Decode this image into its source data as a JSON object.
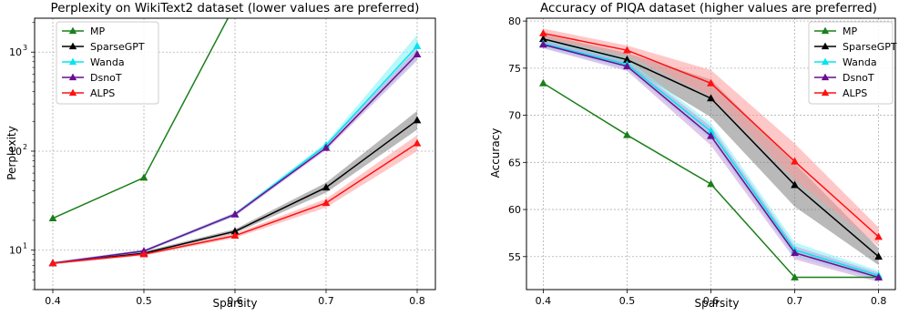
{
  "chart_data": [
    {
      "type": "line",
      "title": "Perplexity on WikiText2 dataset (lower values are preferred)",
      "xlabel": "Sparsity",
      "ylabel": "Perplexity",
      "yscale": "log",
      "grid": true,
      "legend_position": "top-left",
      "xlim": [
        0.38,
        0.82
      ],
      "ylim": [
        4,
        2200
      ],
      "x": [
        0.4,
        0.5,
        0.6,
        0.7,
        0.8
      ],
      "xticks": [
        "0.4",
        "0.5",
        "0.6",
        "0.7",
        "0.8"
      ],
      "yticks": [
        {
          "value": 10,
          "label": "10"
        },
        {
          "value": 100,
          "label": "10"
        },
        {
          "value": 1000,
          "label": "10"
        }
      ],
      "ytick_exponents": [
        "1",
        "2",
        "3"
      ],
      "series": [
        {
          "name": "MP",
          "color": "#1a7f1a",
          "values": [
            21,
            54,
            3000,
            null,
            null
          ],
          "band": null
        },
        {
          "name": "SparseGPT",
          "color": "#000000",
          "values": [
            7.4,
            9.3,
            15.5,
            43,
            205
          ],
          "band": {
            "color": "#808080",
            "low": [
              7.2,
              9.0,
              14.8,
              38,
              165
            ],
            "high": [
              7.6,
              9.7,
              16.3,
              48,
              255
            ]
          }
        },
        {
          "name": "Wanda",
          "color": "#00e5ee",
          "values": [
            7.4,
            9.8,
            23,
            115,
            1150
          ],
          "band": {
            "color": "#7ff3f6",
            "low": [
              7.2,
              9.5,
              22,
              108,
              850
            ],
            "high": [
              7.6,
              10.1,
              24,
              122,
              1500
            ]
          }
        },
        {
          "name": "DsnoT",
          "color": "#6a0d91",
          "values": [
            7.4,
            9.8,
            23,
            108,
            950
          ],
          "band": {
            "color": "#c89bd8",
            "low": [
              7.2,
              9.5,
              22,
              102,
              820
            ],
            "high": [
              7.6,
              10.1,
              24,
              114,
              1100
            ]
          }
        },
        {
          "name": "ALPS",
          "color": "#ff1111",
          "values": [
            7.4,
            9.1,
            14.0,
            30,
            120
          ],
          "band": {
            "color": "#ff9a9a",
            "low": [
              7.2,
              8.8,
              13.3,
              27,
              100
            ],
            "high": [
              7.6,
              9.4,
              14.7,
              33,
              145
            ]
          }
        }
      ]
    },
    {
      "type": "line",
      "title": "Accuracy of PIQA dataset (higher values are preferred)",
      "xlabel": "Sparsity",
      "ylabel": "Accuracy",
      "yscale": "linear",
      "grid": true,
      "legend_position": "top-right",
      "xlim": [
        0.38,
        0.82
      ],
      "ylim": [
        51.5,
        80.3
      ],
      "x": [
        0.4,
        0.5,
        0.6,
        0.7,
        0.8
      ],
      "xticks": [
        "0.4",
        "0.5",
        "0.6",
        "0.7",
        "0.8"
      ],
      "yticks": [
        {
          "value": 55,
          "label": "55"
        },
        {
          "value": 60,
          "label": "60"
        },
        {
          "value": 65,
          "label": "65"
        },
        {
          "value": 70,
          "label": "70"
        },
        {
          "value": 75,
          "label": "75"
        },
        {
          "value": 80,
          "label": "80"
        }
      ],
      "series": [
        {
          "name": "MP",
          "color": "#1a7f1a",
          "values": [
            73.4,
            67.9,
            62.7,
            52.8,
            52.8
          ],
          "band": null
        },
        {
          "name": "SparseGPT",
          "color": "#000000",
          "values": [
            78.1,
            75.9,
            71.8,
            62.6,
            55.0
          ],
          "band": {
            "color": "#808080",
            "low": [
              77.6,
              75.2,
              69.8,
              60.3,
              54.1
            ],
            "high": [
              78.6,
              76.6,
              73.8,
              64.9,
              55.9
            ]
          }
        },
        {
          "name": "Wanda",
          "color": "#00e5ee",
          "values": [
            77.6,
            75.4,
            68.3,
            55.7,
            53.0
          ],
          "band": {
            "color": "#7ff3f6",
            "low": [
              77.2,
              74.9,
              67.4,
              55.0,
              52.5
            ],
            "high": [
              78.0,
              75.9,
              69.2,
              56.5,
              53.5
            ]
          }
        },
        {
          "name": "DsnoT",
          "color": "#6a0d91",
          "values": [
            77.5,
            75.2,
            67.8,
            55.4,
            52.8
          ],
          "band": {
            "color": "#c89bd8",
            "low": [
              77.1,
              74.7,
              66.8,
              54.7,
              52.3
            ],
            "high": [
              77.9,
              75.7,
              68.8,
              56.1,
              53.3
            ]
          }
        },
        {
          "name": "ALPS",
          "color": "#ff1111",
          "values": [
            78.7,
            76.9,
            73.4,
            65.1,
            57.1
          ],
          "band": {
            "color": "#ff9a9a",
            "low": [
              78.2,
              76.4,
              72.0,
              63.2,
              56.1
            ],
            "high": [
              79.2,
              77.4,
              74.8,
              67.0,
              58.1
            ]
          }
        }
      ]
    }
  ]
}
